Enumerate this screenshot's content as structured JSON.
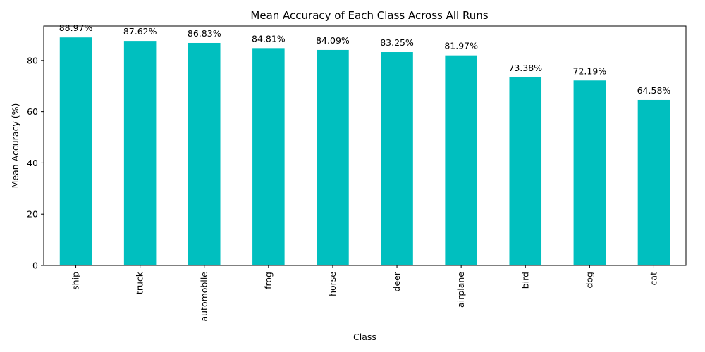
{
  "chart_data": {
    "type": "bar",
    "title": "Mean Accuracy of Each Class Across All Runs",
    "xlabel": "Class",
    "ylabel": "Mean Accuracy (%)",
    "categories": [
      "ship",
      "truck",
      "automobile",
      "frog",
      "horse",
      "deer",
      "airplane",
      "bird",
      "dog",
      "cat"
    ],
    "values": [
      88.97,
      87.62,
      86.83,
      84.81,
      84.09,
      83.25,
      81.97,
      73.38,
      72.19,
      64.58
    ],
    "value_labels": [
      "88.97%",
      "87.62%",
      "86.83%",
      "84.81%",
      "84.09%",
      "83.25%",
      "81.97%",
      "73.38%",
      "72.19%",
      "64.58%"
    ],
    "yticks": [
      0,
      20,
      40,
      60,
      80
    ],
    "ylim": [
      0,
      93.42
    ],
    "bar_color": "#00bfbf",
    "grid": false,
    "legend": "none"
  }
}
